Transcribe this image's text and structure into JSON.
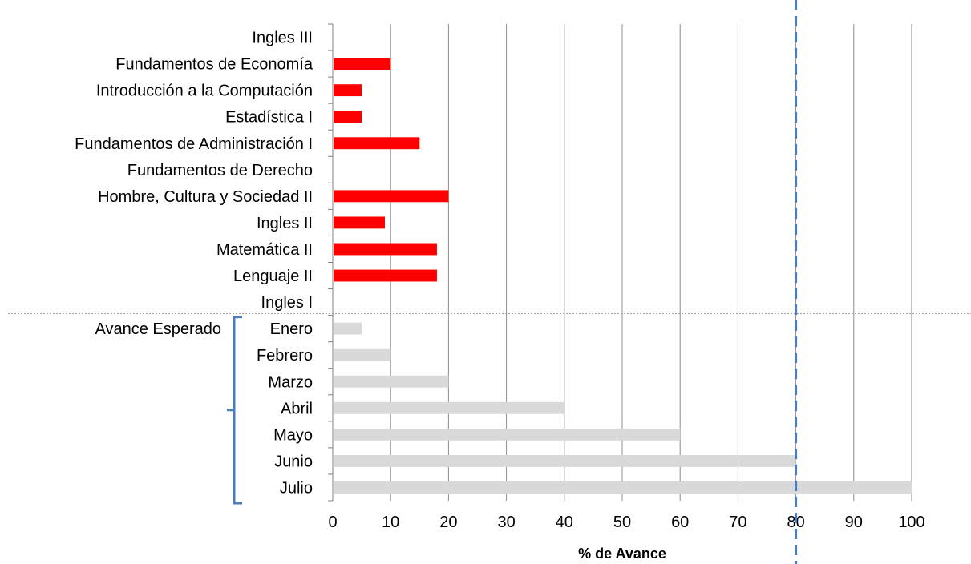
{
  "chart_data": {
    "type": "bar",
    "orientation": "horizontal",
    "categories": [
      "Ingles III",
      "Fundamentos de Economía",
      "Introducción a la Computación",
      "Estadística I",
      "Fundamentos de Administración I",
      "Fundamentos de Derecho",
      "Hombre, Cultura y Sociedad II",
      "Ingles II",
      "Matemática II",
      "Lenguaje II",
      "Ingles I",
      "Enero",
      "Febrero",
      "Marzo",
      "Abril",
      "Mayo",
      "Junio",
      "Julio"
    ],
    "values": [
      0,
      10,
      5,
      5,
      15,
      0,
      20,
      9,
      18,
      18,
      0,
      5,
      10,
      20,
      40,
      60,
      80,
      100
    ],
    "bar_colors": [
      "#ff0000",
      "#ff0000",
      "#ff0000",
      "#ff0000",
      "#ff0000",
      "#ff0000",
      "#ff0000",
      "#ff0000",
      "#ff0000",
      "#ff0000",
      "#ff0000",
      "#d9d9d9",
      "#d9d9d9",
      "#d9d9d9",
      "#d9d9d9",
      "#d9d9d9",
      "#d9d9d9",
      "#d9d9d9"
    ],
    "title": "",
    "xlabel": "% de Avance",
    "ylabel": "",
    "xlim": [
      0,
      100
    ],
    "x_ticks": [
      0,
      10,
      20,
      30,
      40,
      50,
      60,
      70,
      80,
      90,
      100
    ],
    "grid": true,
    "legend": "none",
    "reference_line": {
      "x": 80,
      "style": "dashed",
      "color": "#4a7ebb"
    },
    "group_annotation": {
      "label": "Avance Esperado",
      "first": "Enero",
      "last": "Julio"
    },
    "separator": {
      "between": [
        "Ingles I",
        "Enero"
      ],
      "style": "dotted"
    }
  },
  "colors": {
    "actual": "#ff0000",
    "expected": "#d9d9d9",
    "grid": "#8c8c8c",
    "reference": "#4a7ebb",
    "bracket": "#4a7ebb"
  }
}
